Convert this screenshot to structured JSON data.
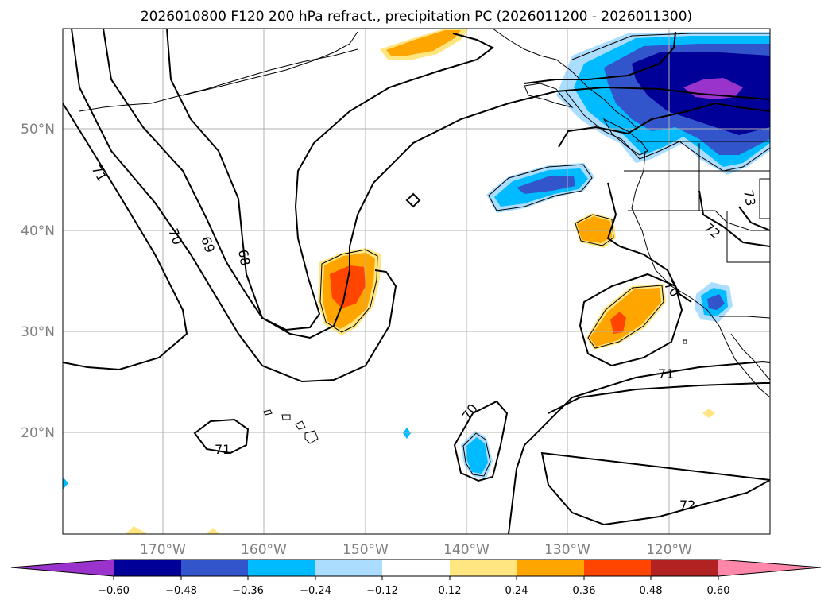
{
  "title": "2026010800 F120 200 hPa refract., precipitation PC (2026011200 - 2026011300)",
  "lat_labels": [
    "50°N",
    "40°N",
    "30°N",
    "20°N"
  ],
  "lon_labels": [
    "170°W",
    "160°W",
    "150°W",
    "140°W",
    "130°W",
    "120°W"
  ],
  "contour_labels": [
    "71",
    "70",
    "69",
    "68",
    "71",
    "70",
    "71",
    "72",
    "73",
    "72",
    "70"
  ],
  "colorbar": {
    "ticks": [
      "−0.60",
      "−0.48",
      "−0.36",
      "−0.24",
      "−0.12",
      "0.12",
      "0.24",
      "0.36",
      "0.48",
      "0.60"
    ],
    "colors": [
      "#9933cc",
      "#000099",
      "#3355cc",
      "#00bbff",
      "#aaddff",
      "#ffffff",
      "#ffe680",
      "#ffa500",
      "#ff4500",
      "#b22222",
      "#ff88aa"
    ]
  },
  "colors": {
    "coast": "#000000",
    "contour": "#000000",
    "grid": "#b0b0b0",
    "neg_light": "#aaddff",
    "neg_mid": "#00bbff",
    "neg_blue": "#3355cc",
    "neg_navy": "#000099",
    "neg_purple": "#9933cc",
    "pos_yellow": "#ffe680",
    "pos_orange": "#ffa500",
    "pos_red": "#ff4500"
  }
}
